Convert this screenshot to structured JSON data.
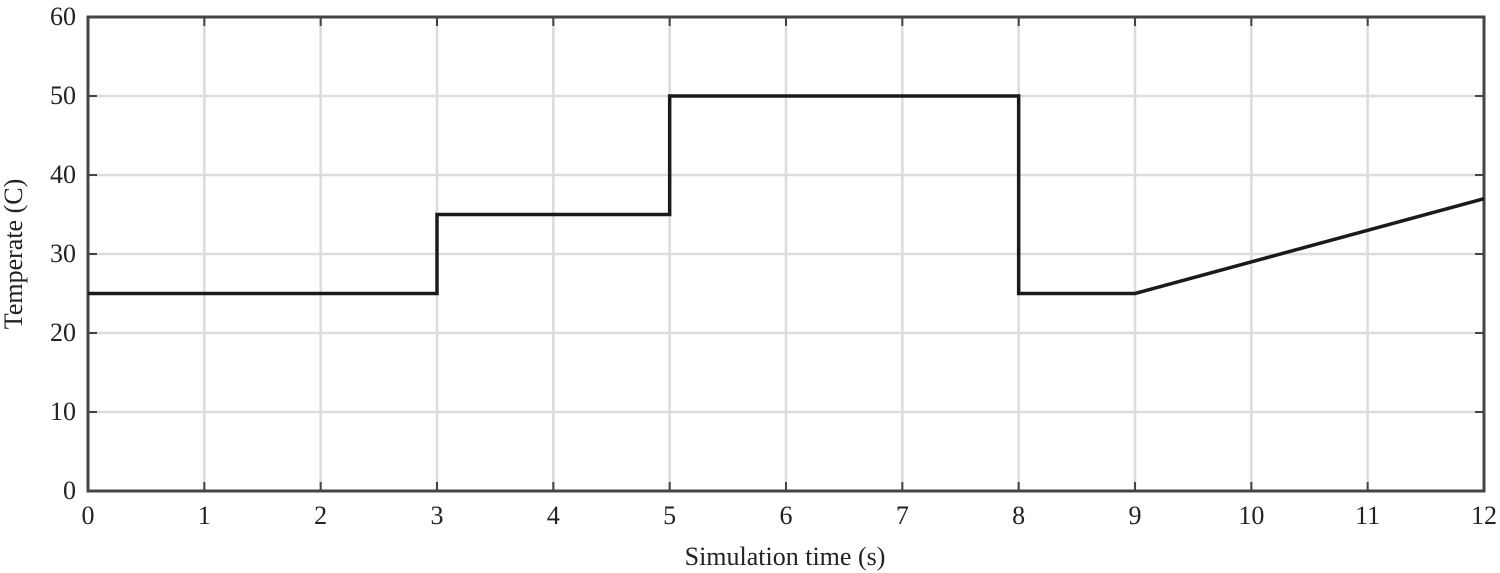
{
  "chart_data": {
    "type": "line",
    "x_label": "Simulation time (s)",
    "y_label": "Temperate (C)",
    "x": [
      0,
      3,
      3,
      5,
      5,
      8,
      8,
      9,
      12
    ],
    "values": [
      25,
      25,
      35,
      35,
      50,
      50,
      25,
      25,
      37
    ],
    "color": "#1a1a1a",
    "xlim": [
      0,
      12
    ],
    "xticks": [
      0,
      1,
      2,
      3,
      4,
      5,
      6,
      7,
      8,
      9,
      10,
      11,
      12
    ],
    "ylim": [
      0,
      60
    ],
    "yticks": [
      0,
      10,
      20,
      30,
      40,
      50,
      60
    ],
    "grid": true
  }
}
